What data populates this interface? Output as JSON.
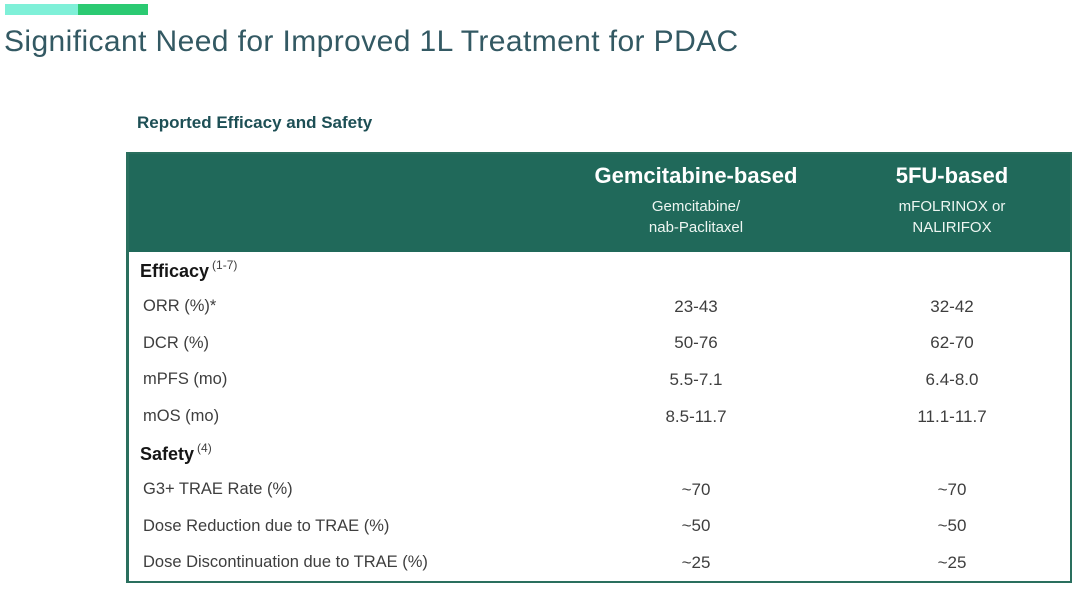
{
  "accent": {
    "bar1_color": "#7ff0d8",
    "bar2_color": "#2bca72"
  },
  "title": "Significant Need for Improved 1L Treatment for PDAC",
  "colors": {
    "header_green": "#20695a",
    "border_green": "#2a6f5e",
    "title_teal": "#335963",
    "caption_teal": "#1d4f55",
    "body_text": "#3e3e3e"
  },
  "table": {
    "caption": "Reported Efficacy and Safety",
    "header": {
      "gem": {
        "title": "Gemcitabine-based",
        "subtitle_line1": "Gemcitabine/",
        "subtitle_line2": "nab-Paclitaxel"
      },
      "fu": {
        "title": "5FU-based",
        "subtitle_line1": "mFOLRINOX or",
        "subtitle_line2": "NALIRIFOX"
      }
    },
    "sections": [
      {
        "label": "Efficacy",
        "superscript": "(1-7)",
        "rows": [
          {
            "label": "ORR (%)*",
            "gem": "23-43",
            "fu": "32-42"
          },
          {
            "label": "DCR (%)",
            "gem": "50-76",
            "fu": "62-70"
          },
          {
            "label": "mPFS (mo)",
            "gem": "5.5-7.1",
            "fu": "6.4-8.0"
          },
          {
            "label": "mOS (mo)",
            "gem": "8.5-11.7",
            "fu": "11.1-11.7"
          }
        ]
      },
      {
        "label": "Safety",
        "superscript": "(4)",
        "rows": [
          {
            "label": "G3+ TRAE Rate (%)",
            "gem": "~70",
            "fu": "~70"
          },
          {
            "label": "Dose Reduction due to TRAE (%)",
            "gem": "~50",
            "fu": "~50"
          },
          {
            "label": "Dose Discontinuation due to TRAE (%)",
            "gem": "~25",
            "fu": "~25"
          }
        ]
      }
    ]
  }
}
